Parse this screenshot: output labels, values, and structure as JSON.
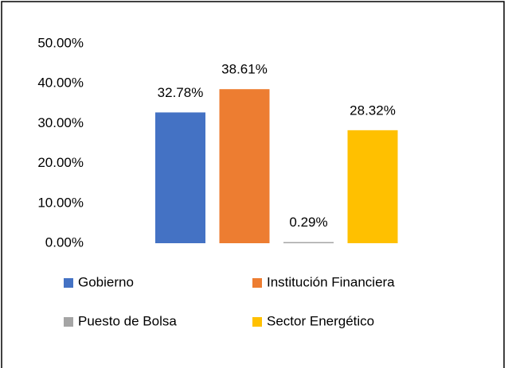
{
  "chart_data": {
    "type": "bar",
    "categories": [
      null
    ],
    "series": [
      {
        "name": "Gobierno",
        "color": "#4472c4",
        "values": [
          32.78
        ],
        "value_labels": [
          "32.78%"
        ]
      },
      {
        "name": "Institución Financiera",
        "color": "#ed7d31",
        "values": [
          38.61
        ],
        "value_labels": [
          "38.61%"
        ]
      },
      {
        "name": "Puesto de Bolsa",
        "color": "#a5a5a5",
        "values": [
          0.29
        ],
        "value_labels": [
          "0.29%"
        ]
      },
      {
        "name": "Sector Energético",
        "color": "#ffc000",
        "values": [
          28.32
        ],
        "value_labels": [
          "28.32%"
        ]
      }
    ],
    "ylim": [
      0,
      50
    ],
    "yticks": [
      {
        "value": 0,
        "label": "0.00%"
      },
      {
        "value": 10,
        "label": "10.00%"
      },
      {
        "value": 20,
        "label": "20.00%"
      },
      {
        "value": 30,
        "label": "30.00%"
      },
      {
        "value": 40,
        "label": "40.00%"
      },
      {
        "value": 50,
        "label": "50.00%"
      }
    ],
    "grid": false
  }
}
